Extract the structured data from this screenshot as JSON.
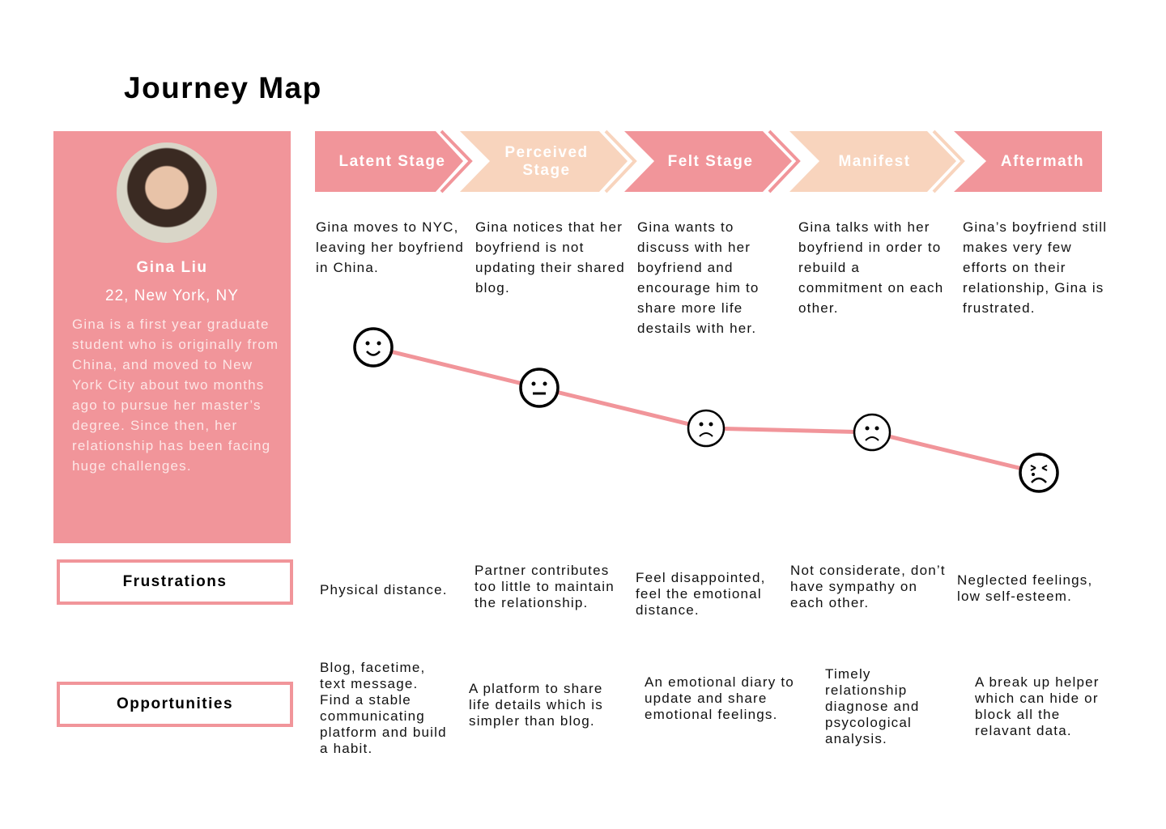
{
  "title": "Journey Map",
  "persona": {
    "name": "Gina Liu",
    "location": "22, New York, NY",
    "bio": "Gina is a first year graduate student who is originally from China, and moved to New York City about two months ago to pursue her master’s degree. Since then, her relationship has been facing huge challenges."
  },
  "colors": {
    "pink": "#f1959a",
    "peach": "#f8d4bd",
    "line": "#f1959a"
  },
  "stages": [
    {
      "label": "Latent Stage",
      "description": "Gina moves to NYC, leaving her boyfriend in China.",
      "emotion": "happy-face-icon"
    },
    {
      "label": "Perceived Stage",
      "description": "Gina notices that her boyfriend is not updating their shared blog.",
      "emotion": "neutral-face-icon"
    },
    {
      "label": "Felt Stage",
      "description": "Gina wants to discuss with her boyfriend and encourage him to share more life destails with her.",
      "emotion": "sad-face-icon"
    },
    {
      "label": "Manifest",
      "description": "Gina talks with her boyfriend in order to rebuild a commitment on each other.",
      "emotion": "sad-face-icon"
    },
    {
      "label": "Aftermath",
      "description": "Gina’s boyfriend still makes very few efforts on their relationship, Gina is frustrated.",
      "emotion": "crying-face-icon"
    }
  ],
  "frustrations": {
    "label": "Frustrations",
    "items": [
      "Physical distance.",
      "Partner contributes too little to maintain the relationship.",
      "Feel disappointed, feel the emotional distance.",
      "Not considerate, don’t have sympathy on each other.",
      "Neglected feelings, low self-esteem."
    ]
  },
  "opportunities": {
    "label": "Opportunities",
    "items": [
      "Blog, facetime, text message. Find a stable communicating platform and build a habit.",
      "A platform to share life details which is simpler than blog.",
      "An emotional diary to update and share emotional feelings.",
      "Timely relationship diagnose and psycological analysis.",
      "A break up helper which can hide or block all the relavant data."
    ]
  }
}
